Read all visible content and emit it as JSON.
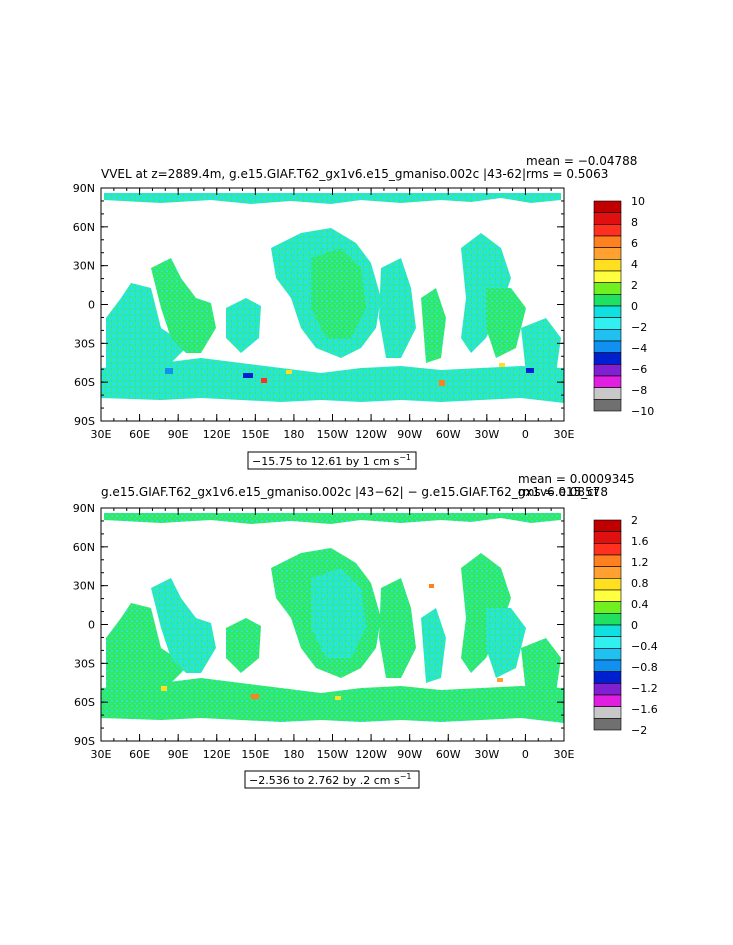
{
  "panels": [
    {
      "title": "VVEL at z=2889.4m, g.e15.GIAF.T62_gx1v6.e15_gmaniso.002c |43-62|",
      "mean": "mean = −0.04788",
      "rms": "rms = 0.5063",
      "range_label": "−15.75 to 12.61 by 1 cm s",
      "range_unit_exp": "−1",
      "colorbar": {
        "labels": [
          "10",
          "8",
          "6",
          "4",
          "2",
          "0",
          "−2",
          "−4",
          "−6",
          "−8",
          "−10"
        ]
      }
    },
    {
      "title": "g.e15.GIAF.T62_gx1v6.e15_gmaniso.002c |43−62| − g.e15.GIAF.T62_gx1v6.e15_ct",
      "mean": "mean = 0.0009345",
      "rms": "rms = 0.08578",
      "range_label": "−2.536 to 2.762 by .2 cm s",
      "range_unit_exp": "−1",
      "colorbar": {
        "labels": [
          "2",
          "1.6",
          "1.2",
          "0.8",
          "0.4",
          "0",
          "−0.4",
          "−0.8",
          "−1.2",
          "−1.6",
          "−2"
        ]
      }
    }
  ],
  "axes": {
    "lat_labels": [
      "90N",
      "60N",
      "30N",
      "0",
      "30S",
      "60S",
      "90S"
    ],
    "lon_labels": [
      "30E",
      "60E",
      "90E",
      "120E",
      "150E",
      "180",
      "150W",
      "120W",
      "90W",
      "60W",
      "30W",
      "0",
      "30E"
    ]
  },
  "colors": {
    "ocean_main": "#22e6e0",
    "ocean_green": "#33e85a",
    "land": "#ffffff",
    "scale": [
      "#c00000",
      "#e01010",
      "#ff3020",
      "#ff8020",
      "#ffa030",
      "#ffe020",
      "#ffff40",
      "#70f020",
      "#20e060",
      "#10e0e0",
      "#30f0f0",
      "#20c0f0",
      "#1090f0",
      "#0020d0",
      "#8020d0",
      "#e020e0",
      "#c8c8c8",
      "#707070"
    ]
  }
}
